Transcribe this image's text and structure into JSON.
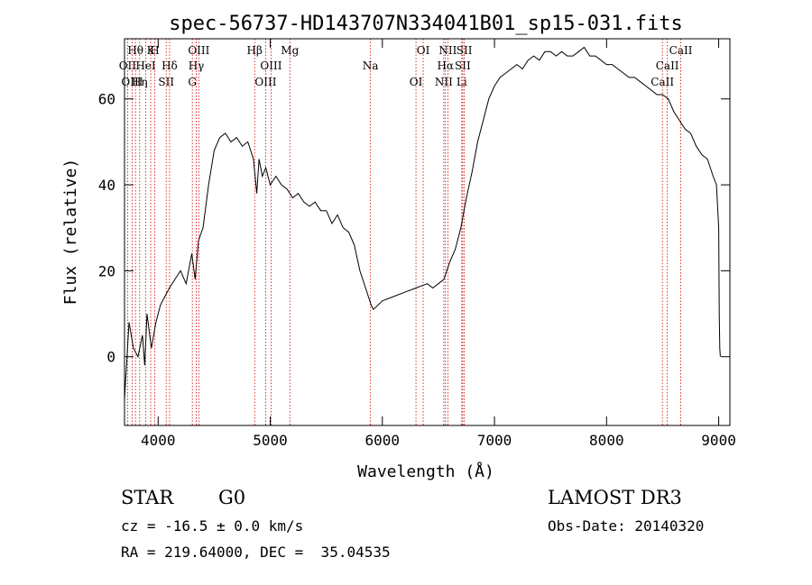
{
  "chart_data": {
    "type": "line",
    "title": "spec-56737-HD143707N334041B01_sp15-031.fits",
    "xlabel": "Wavelength (Å)",
    "ylabel": "Flux (relative)",
    "xlim": [
      3700,
      9100
    ],
    "ylim": [
      -16,
      74
    ],
    "x_ticks": [
      4000,
      5000,
      6000,
      7000,
      8000,
      9000
    ],
    "y_ticks": [
      0,
      20,
      40,
      60
    ],
    "x_tick_labels": [
      "4000",
      "5000",
      "6000",
      "7000",
      "8000",
      "9000"
    ],
    "y_tick_labels": [
      "0",
      "20",
      "40",
      "60"
    ],
    "series": [
      {
        "name": "flux",
        "x": [
          3700,
          3740,
          3780,
          3820,
          3860,
          3880,
          3900,
          3940,
          3980,
          4020,
          4060,
          4100,
          4150,
          4200,
          4250,
          4300,
          4330,
          4360,
          4400,
          4450,
          4500,
          4550,
          4600,
          4650,
          4700,
          4750,
          4800,
          4850,
          4880,
          4900,
          4930,
          4960,
          5000,
          5050,
          5100,
          5150,
          5200,
          5250,
          5300,
          5350,
          5400,
          5450,
          5500,
          5550,
          5600,
          5650,
          5700,
          5750,
          5800,
          5850,
          5900,
          5920,
          6000,
          6100,
          6200,
          6300,
          6400,
          6450,
          6500,
          6550,
          6600,
          6650,
          6700,
          6750,
          6800,
          6850,
          6900,
          6950,
          7000,
          7050,
          7100,
          7150,
          7200,
          7250,
          7300,
          7350,
          7400,
          7450,
          7500,
          7550,
          7600,
          7650,
          7700,
          7750,
          7800,
          7850,
          7900,
          7950,
          8000,
          8050,
          8100,
          8150,
          8200,
          8250,
          8300,
          8350,
          8400,
          8450,
          8500,
          8550,
          8600,
          8650,
          8700,
          8750,
          8800,
          8850,
          8900,
          8950,
          8980,
          9000,
          9005,
          9010,
          9015
        ],
        "values": [
          -10,
          8,
          2,
          0,
          5,
          -2,
          10,
          2,
          8,
          12,
          14,
          16,
          18,
          20,
          17,
          24,
          18,
          27,
          30,
          40,
          48,
          51,
          52,
          50,
          51,
          49,
          50,
          46,
          38,
          46,
          42,
          44,
          40,
          42,
          40,
          39,
          37,
          38,
          36,
          35,
          36,
          34,
          34,
          31,
          33,
          30,
          29,
          26,
          20,
          16,
          12,
          11,
          13,
          14,
          15,
          16,
          17,
          16,
          17,
          18,
          22,
          25,
          30,
          37,
          43,
          50,
          55,
          60,
          63,
          65,
          66,
          67,
          68,
          67,
          69,
          70,
          69,
          71,
          71,
          70,
          71,
          70,
          70,
          71,
          72,
          70,
          70,
          69,
          68,
          68,
          67,
          66,
          65,
          65,
          64,
          63,
          62,
          61,
          61,
          60,
          57,
          55,
          53,
          52,
          49,
          47,
          46,
          42,
          40,
          30,
          10,
          2,
          0
        ]
      }
    ],
    "lines_top": [
      {
        "label": "Hθ",
        "x": 3798
      },
      {
        "label": "OII",
        "x": 3727
      },
      {
        "label": "OIII",
        "x": 3768
      },
      {
        "label": "K",
        "x": 3934
      },
      {
        "label": "HeI",
        "x": 3889
      },
      {
        "label": "Hη",
        "x": 3835
      },
      {
        "label": "H",
        "x": 3969
      },
      {
        "label": "Hδ",
        "x": 4102
      },
      {
        "label": "SII",
        "x": 4072
      },
      {
        "label": "OIII",
        "x": 4363
      },
      {
        "label": "Hγ",
        "x": 4340
      },
      {
        "label": "G",
        "x": 4305
      },
      {
        "label": "Hβ",
        "x": 4861
      },
      {
        "label": "OIII",
        "x": 5007
      },
      {
        "label": "OIII",
        "x": 4959
      },
      {
        "label": "Mg",
        "x": 5175
      },
      {
        "label": "Na",
        "x": 5894
      },
      {
        "label": "OI",
        "x": 6300
      },
      {
        "label": "OI",
        "x": 6364
      },
      {
        "label": "Hα",
        "x": 6563
      },
      {
        "label": "NII",
        "x": 6548
      },
      {
        "label": "NII",
        "x": 6584
      },
      {
        "label": "SII",
        "x": 6717
      },
      {
        "label": "Li",
        "x": 6708
      },
      {
        "label": "SII",
        "x": 6731
      },
      {
        "label": "CaII",
        "x": 8542
      },
      {
        "label": "CaII",
        "x": 8498
      },
      {
        "label": "CaII",
        "x": 8662
      }
    ]
  },
  "info": {
    "class_label": "STAR",
    "subclass": "G0",
    "survey": "LAMOST DR3",
    "cz_text": "cz = -16.5 ± 0.0 km/s",
    "obs_date": "Obs-Date: 20140320",
    "coords": "RA = 219.64000, DEC =  35.04535"
  }
}
